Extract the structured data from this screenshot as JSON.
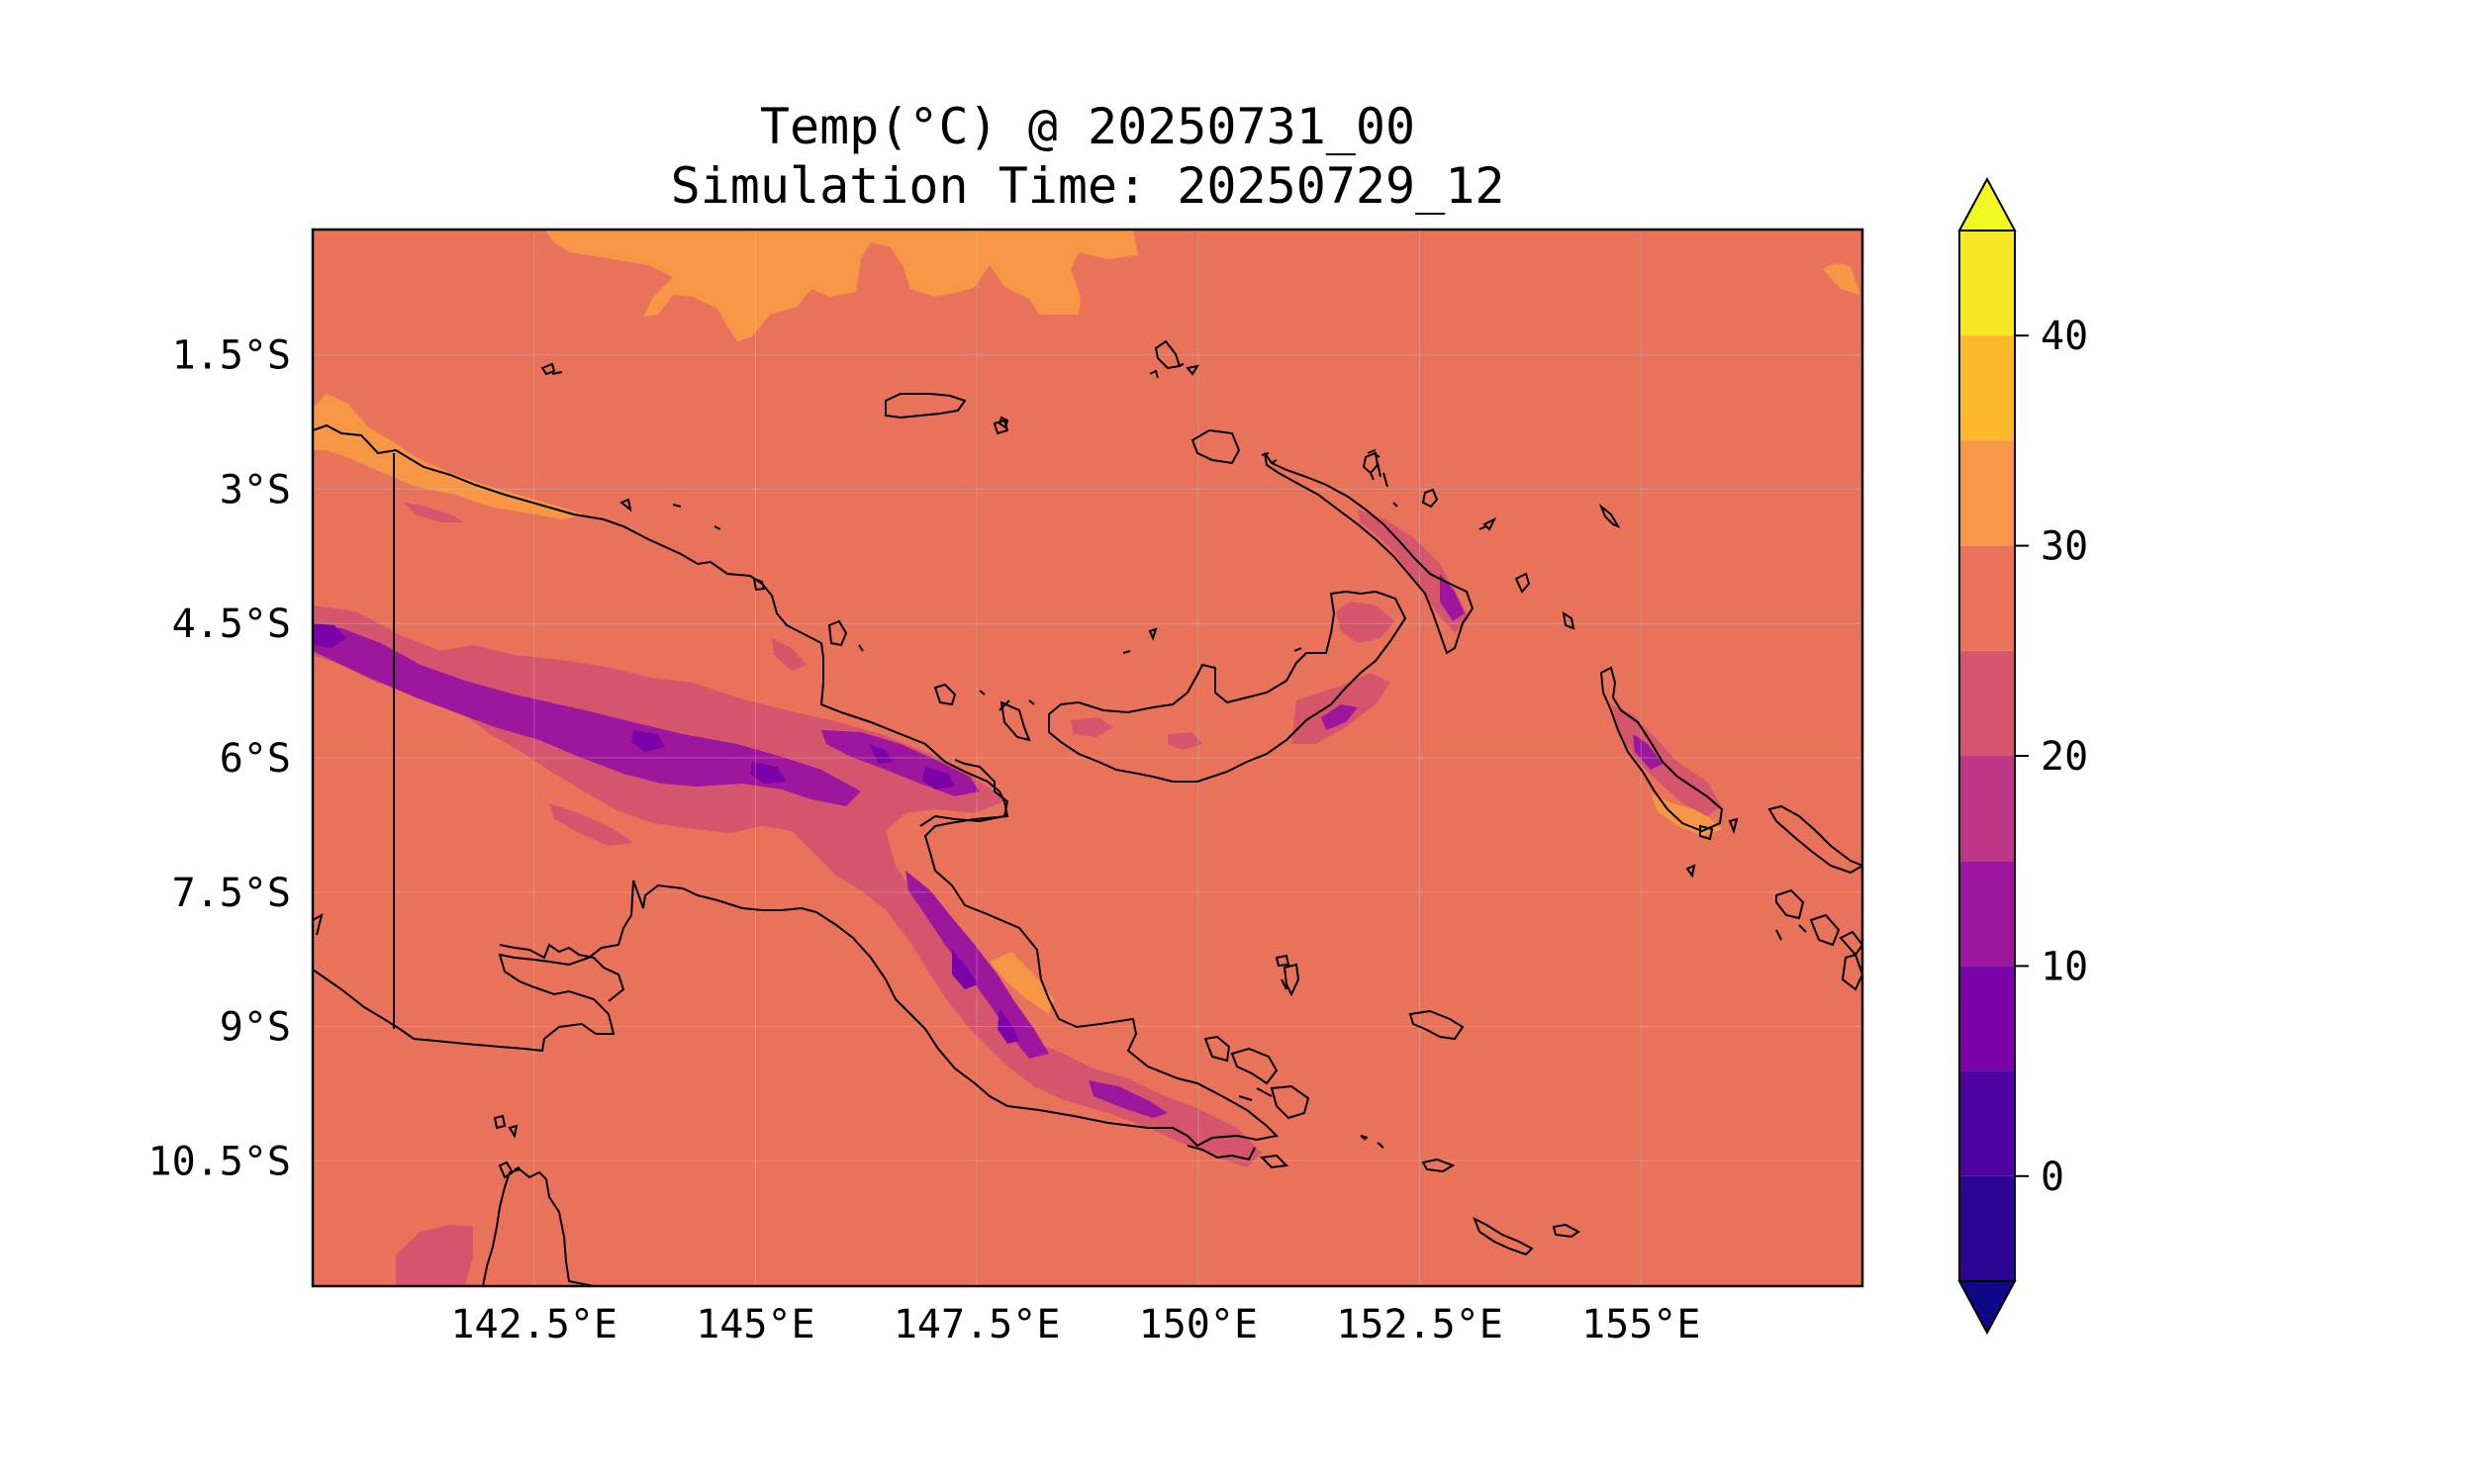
{
  "title": {
    "line1": "Temp(°C) @ 20250731_00",
    "line2": "Simulation Time: 20250729_12"
  },
  "map": {
    "x_tick_labels": [
      "142.5°E",
      "145°E",
      "147.5°E",
      "150°E",
      "152.5°E",
      "155°E"
    ],
    "x_tick_values": [
      142.5,
      145,
      147.5,
      150,
      152.5,
      155
    ],
    "y_tick_labels": [
      "1.5°S",
      "3°S",
      "4.5°S",
      "6°S",
      "7.5°S",
      "9°S",
      "10.5°S"
    ],
    "y_tick_values": [
      -1.5,
      -3,
      -4.5,
      -6,
      -7.5,
      -9,
      -10.5
    ],
    "lon_range": [
      140.0,
      157.5
    ],
    "lat_range": [
      -11.9,
      -0.1
    ],
    "field": "temperature",
    "dominant_value_range": [
      25,
      30
    ],
    "gridlines": true,
    "colors": {
      "ocean_fill": "#e9735a",
      "warm": "#f79746",
      "mountain": "#d5566c"
    }
  },
  "colorbar": {
    "tick_labels": [
      "0",
      "10",
      "20",
      "30",
      "40"
    ],
    "tick_values": [
      0,
      10,
      20,
      30,
      40
    ],
    "levels": [
      -5,
      0,
      5,
      10,
      15,
      20,
      25,
      30,
      35,
      40,
      45
    ],
    "colors": [
      "#2c0594",
      "#4e02a2",
      "#7a02a8",
      "#9c179e",
      "#bd3786",
      "#d5566c",
      "#e9735a",
      "#f79746",
      "#feb82c",
      "#f5e626"
    ],
    "under_color": "#0d0887",
    "over_color": "#f0f921",
    "extend": "both"
  }
}
